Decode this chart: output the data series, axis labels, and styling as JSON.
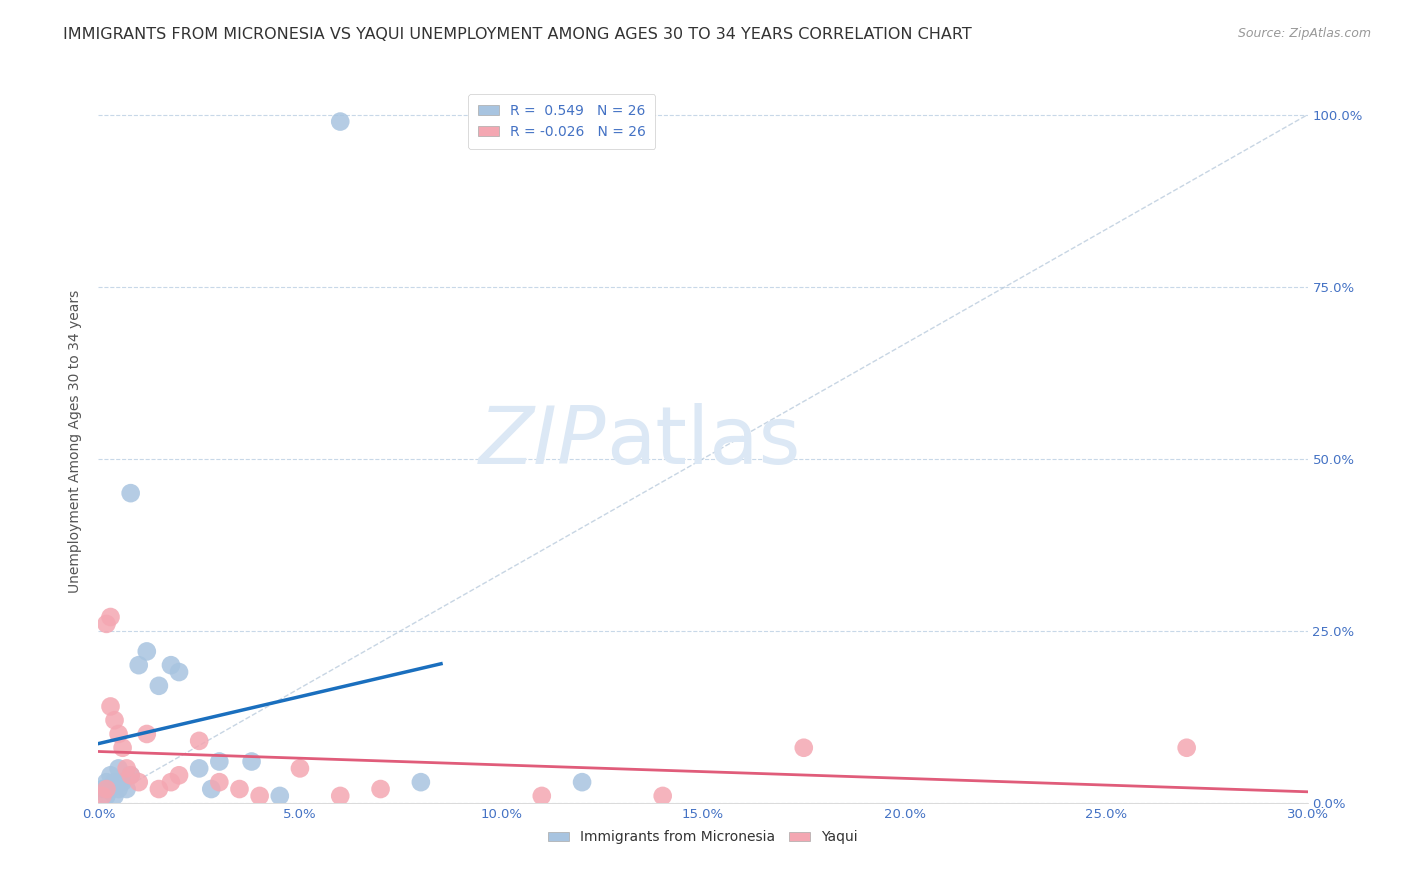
{
  "title": "IMMIGRANTS FROM MICRONESIA VS YAQUI UNEMPLOYMENT AMONG AGES 30 TO 34 YEARS CORRELATION CHART",
  "source": "Source: ZipAtlas.com",
  "ylabel_label": "Unemployment Among Ages 30 to 34 years",
  "xlim": [
    0.0,
    30.0
  ],
  "ylim": [
    0.0,
    105.0
  ],
  "x_tick_vals": [
    0.0,
    5.0,
    10.0,
    15.0,
    20.0,
    25.0,
    30.0
  ],
  "x_tick_labels": [
    "0.0%",
    "5.0%",
    "10.0%",
    "15.0%",
    "20.0%",
    "25.0%",
    "30.0%"
  ],
  "y_tick_vals": [
    0.0,
    25.0,
    50.0,
    75.0,
    100.0
  ],
  "y_tick_labels": [
    "0.0%",
    "25.0%",
    "50.0%",
    "75.0%",
    "100.0%"
  ],
  "legend_entries": [
    {
      "label": "R =  0.549   N = 26",
      "color": "#aec6e8"
    },
    {
      "label": "R = -0.026   N = 26",
      "color": "#f4a7b2"
    }
  ],
  "micronesia_x": [
    0.1,
    0.2,
    0.2,
    0.3,
    0.3,
    0.4,
    0.4,
    0.5,
    0.5,
    0.6,
    0.7,
    0.8,
    0.8,
    1.0,
    1.2,
    1.5,
    1.8,
    2.0,
    2.5,
    2.8,
    3.0,
    3.8,
    4.5,
    6.0,
    8.0,
    12.0
  ],
  "micronesia_y": [
    2.0,
    1.0,
    3.0,
    2.0,
    4.0,
    3.0,
    1.0,
    2.0,
    5.0,
    3.0,
    2.0,
    4.0,
    45.0,
    20.0,
    22.0,
    17.0,
    20.0,
    19.0,
    5.0,
    2.0,
    6.0,
    6.0,
    1.0,
    99.0,
    3.0,
    3.0
  ],
  "yaqui_x": [
    0.1,
    0.2,
    0.2,
    0.3,
    0.3,
    0.4,
    0.5,
    0.6,
    0.7,
    0.8,
    1.0,
    1.2,
    1.5,
    1.8,
    2.0,
    2.5,
    3.0,
    3.5,
    4.0,
    5.0,
    6.0,
    7.0,
    11.0,
    14.0,
    17.5,
    27.0
  ],
  "yaqui_y": [
    1.0,
    2.0,
    26.0,
    27.0,
    14.0,
    12.0,
    10.0,
    8.0,
    5.0,
    4.0,
    3.0,
    10.0,
    2.0,
    3.0,
    4.0,
    9.0,
    3.0,
    2.0,
    1.0,
    5.0,
    1.0,
    2.0,
    1.0,
    1.0,
    8.0,
    8.0
  ],
  "micronesia_color": "#a8c4e0",
  "yaqui_color": "#f4a7b2",
  "micronesia_line_color": "#1a6fbe",
  "yaqui_line_color": "#e05c7a",
  "diagonal_color": "#b0c4d8",
  "watermark_zip": "ZIP",
  "watermark_atlas": "atlas",
  "background_color": "#ffffff",
  "grid_color": "#c8d8e8",
  "title_fontsize": 11.5,
  "source_fontsize": 9,
  "axis_label_fontsize": 10,
  "tick_fontsize": 9.5,
  "legend_fontsize": 10
}
